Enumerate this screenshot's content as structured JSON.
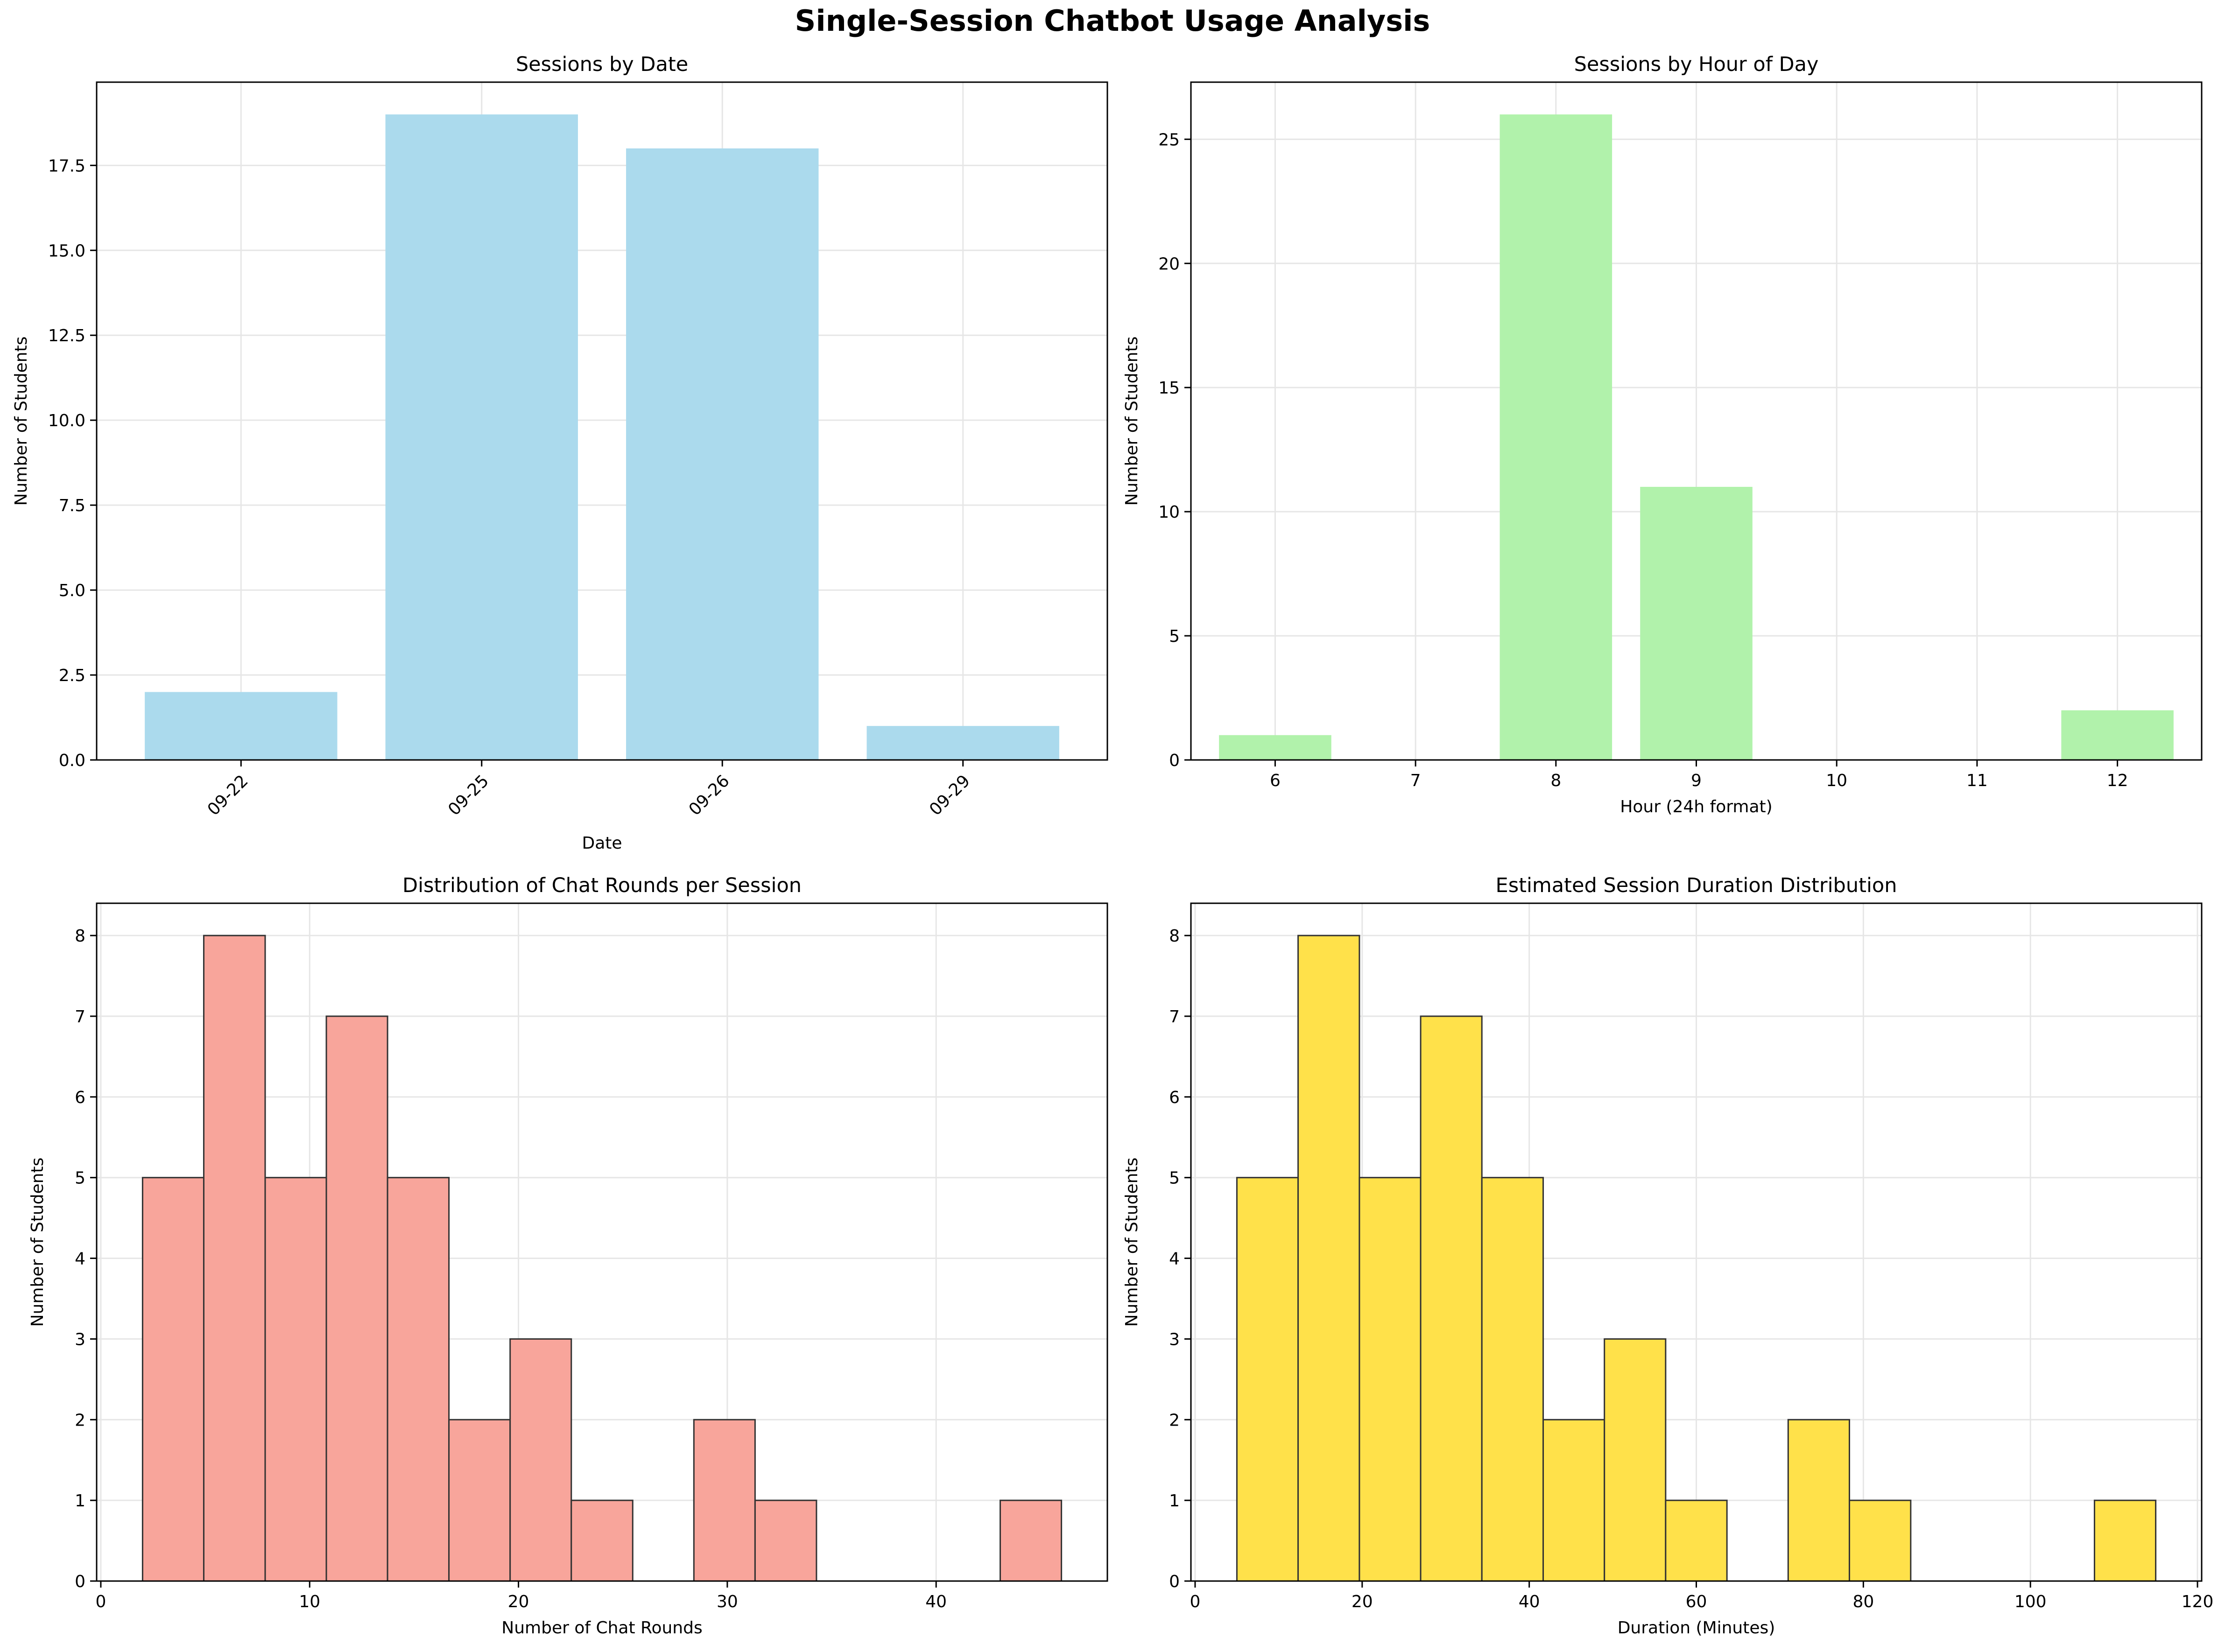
{
  "suptitle": "Single-Session Chatbot Usage Analysis",
  "colors": {
    "bar_date": "#ABDAED",
    "bar_hour": "#B1F2AB",
    "hist_rounds": "#F8A59B",
    "hist_duration": "#FFE14A",
    "edge": "#333333",
    "grid": "#E6E6E6"
  },
  "chart_data": [
    {
      "type": "bar",
      "title": "Sessions by Date",
      "xlabel": "Date",
      "ylabel": "Number of Students",
      "categories": [
        "09-22",
        "09-25",
        "09-26",
        "09-29"
      ],
      "values": [
        2,
        19,
        18,
        1
      ],
      "ylim": [
        0,
        19.95
      ],
      "yticks": [
        "0.0",
        "2.5",
        "5.0",
        "7.5",
        "10.0",
        "12.5",
        "15.0",
        "17.5"
      ],
      "xtick_rotation": 45,
      "grid": true
    },
    {
      "type": "bar",
      "title": "Sessions by Hour of Day",
      "xlabel": "Hour (24h format)",
      "ylabel": "Number of Students",
      "categories": [
        "6",
        "7",
        "8",
        "9",
        "10",
        "11",
        "12"
      ],
      "values": [
        1,
        0,
        26,
        11,
        0,
        0,
        2
      ],
      "ylim": [
        0,
        27.3
      ],
      "yticks": [
        "0",
        "5",
        "10",
        "15",
        "20",
        "25"
      ],
      "grid": true
    },
    {
      "type": "bar",
      "title": "Distribution of Chat Rounds per Session",
      "xlabel": "Number of Chat Rounds",
      "ylabel": "Number of Students",
      "bin_edges": [
        2,
        4.93,
        7.87,
        10.8,
        13.73,
        16.67,
        19.6,
        22.53,
        25.47,
        28.4,
        31.33,
        34.27,
        37.2,
        40.13,
        43.07,
        46
      ],
      "values": [
        5,
        8,
        5,
        7,
        5,
        2,
        3,
        1,
        0,
        2,
        1,
        0,
        0,
        0,
        1
      ],
      "xlim": [
        -0.2,
        48.2
      ],
      "xticks": [
        "0",
        "10",
        "20",
        "30",
        "40"
      ],
      "ylim": [
        0,
        8.4
      ],
      "yticks": [
        "0",
        "1",
        "2",
        "3",
        "4",
        "5",
        "6",
        "7",
        "8"
      ],
      "grid": true
    },
    {
      "type": "bar",
      "title": "Estimated Session Duration Distribution",
      "xlabel": "Duration (Minutes)",
      "ylabel": "Number of Students",
      "bin_edges": [
        5,
        12.33,
        19.67,
        27,
        34.33,
        41.67,
        49,
        56.33,
        63.67,
        71,
        78.33,
        85.67,
        93,
        100.33,
        107.67,
        115
      ],
      "values": [
        5,
        8,
        5,
        7,
        5,
        2,
        3,
        1,
        0,
        2,
        1,
        0,
        0,
        0,
        1
      ],
      "xlim": [
        -0.5,
        120.5
      ],
      "xticks": [
        "0",
        "20",
        "40",
        "60",
        "80",
        "100",
        "120"
      ],
      "ylim": [
        0,
        8.4
      ],
      "yticks": [
        "0",
        "1",
        "2",
        "3",
        "4",
        "5",
        "6",
        "7",
        "8"
      ],
      "grid": true
    }
  ]
}
